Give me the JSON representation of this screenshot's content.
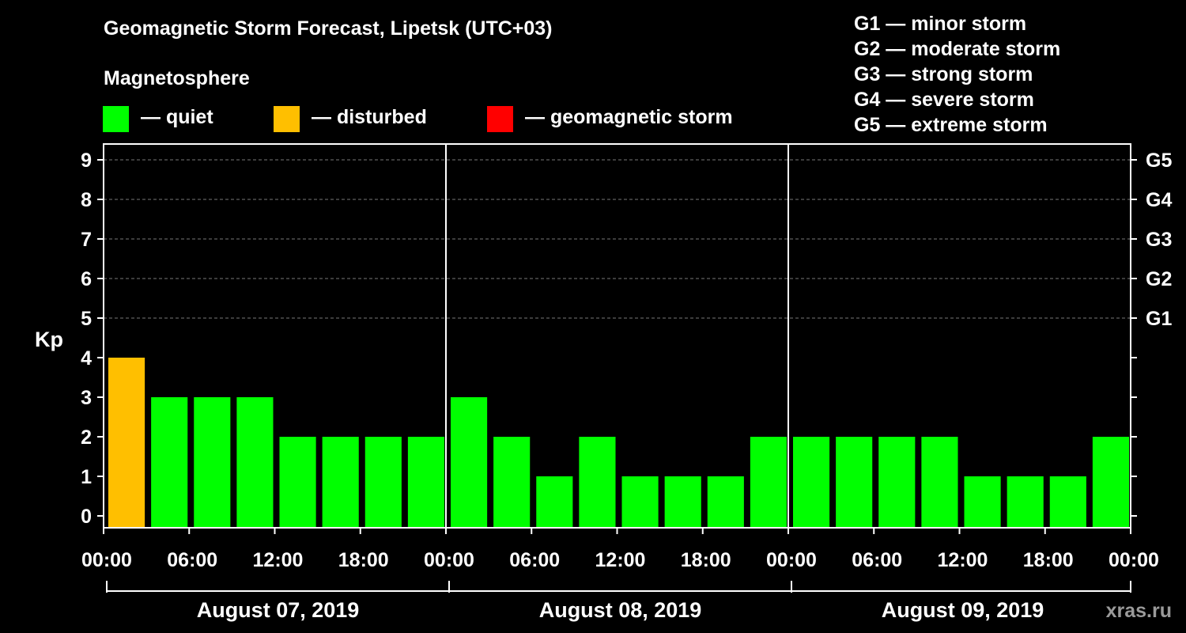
{
  "header": {
    "title": "Geomagnetic Storm Forecast, Lipetsk (UTC+03)",
    "magnetosphere_label": "Magnetosphere",
    "legend": [
      {
        "label": "— quiet",
        "color": "#00ff00"
      },
      {
        "label": "— disturbed",
        "color": "#ffbf00"
      },
      {
        "label": "— geomagnetic storm",
        "color": "#ff0000"
      }
    ]
  },
  "g_scale": [
    "G1 — minor storm",
    "G2 — moderate storm",
    "G3 — strong storm",
    "G4 — severe storm",
    "G5 — extreme storm"
  ],
  "watermark": "xras.ru",
  "chart_data": {
    "type": "bar",
    "title": "Geomagnetic Storm Forecast, Lipetsk (UTC+03)",
    "ylabel": "Kp",
    "ylim": [
      0,
      9
    ],
    "yticks": [
      "0",
      "1",
      "2",
      "3",
      "4",
      "5",
      "6",
      "7",
      "8",
      "9"
    ],
    "right_ticks": [
      {
        "kp": 5,
        "label": "G1"
      },
      {
        "kp": 6,
        "label": "G2"
      },
      {
        "kp": 7,
        "label": "G3"
      },
      {
        "kp": 8,
        "label": "G4"
      },
      {
        "kp": 9,
        "label": "G5"
      }
    ],
    "xticks": [
      "00:00",
      "06:00",
      "12:00",
      "18:00",
      "00:00",
      "06:00",
      "12:00",
      "18:00",
      "00:00",
      "06:00",
      "12:00",
      "18:00",
      "00:00"
    ],
    "days": [
      "August 07, 2019",
      "August 08, 2019",
      "August 09, 2019"
    ],
    "interval_hours": 3,
    "values": [
      4,
      3,
      3,
      3,
      2,
      2,
      2,
      2,
      3,
      2,
      1,
      2,
      1,
      1,
      1,
      2,
      2,
      2,
      2,
      2,
      1,
      1,
      1,
      2
    ],
    "levels": [
      "disturbed",
      "quiet",
      "quiet",
      "quiet",
      "quiet",
      "quiet",
      "quiet",
      "quiet",
      "quiet",
      "quiet",
      "quiet",
      "quiet",
      "quiet",
      "quiet",
      "quiet",
      "quiet",
      "quiet",
      "quiet",
      "quiet",
      "quiet",
      "quiet",
      "quiet",
      "quiet",
      "quiet"
    ],
    "colors": {
      "quiet": "#00ff00",
      "disturbed": "#ffbf00",
      "storm": "#ff0000"
    },
    "grid": true
  }
}
